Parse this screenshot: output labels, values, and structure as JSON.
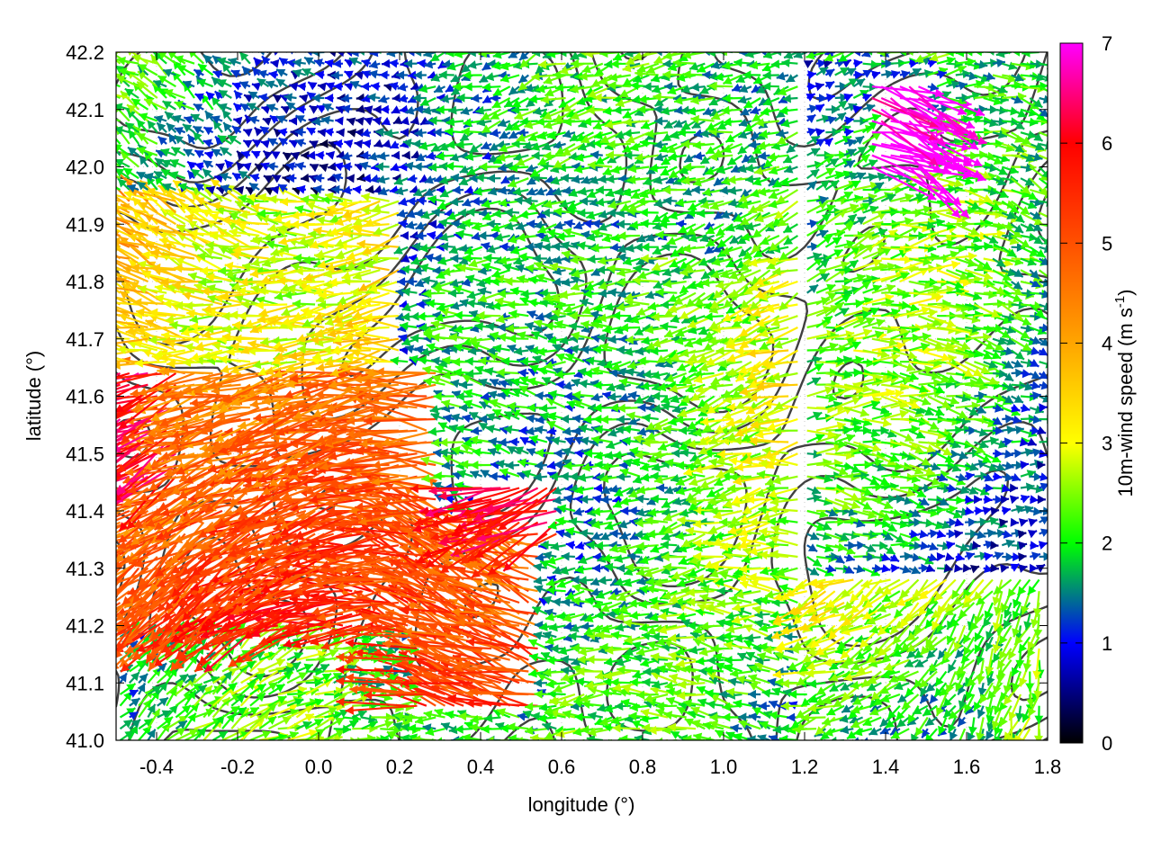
{
  "chart_data": {
    "type": "vector-field",
    "xlabel": "longitude (°)",
    "ylabel": "latitude (°)",
    "colorbar_label": "10m-wind speed (m s-1)",
    "colorbar_label_parts": {
      "main": "10m-wind speed (m s",
      "exponent": "-1",
      "close": ")"
    },
    "xlim": [
      -0.5,
      1.8
    ],
    "ylim": [
      41.0,
      42.2
    ],
    "x_ticks": [
      "-0.4",
      "-0.2",
      "0.0",
      "0.2",
      "0.4",
      "0.6",
      "0.8",
      "1.0",
      "1.2",
      "1.4",
      "1.6",
      "1.8"
    ],
    "x_tick_values": [
      -0.4,
      -0.2,
      0.0,
      0.2,
      0.4,
      0.6,
      0.8,
      1.0,
      1.2,
      1.4,
      1.6,
      1.8
    ],
    "y_ticks": [
      "41.0",
      "41.1",
      "41.2",
      "41.3",
      "41.4",
      "41.5",
      "41.6",
      "41.7",
      "41.8",
      "41.9",
      "42.0",
      "42.1",
      "42.2"
    ],
    "y_tick_values": [
      41.0,
      41.1,
      41.2,
      41.3,
      41.4,
      41.5,
      41.6,
      41.7,
      41.8,
      41.9,
      42.0,
      42.1,
      42.2
    ],
    "colorbar_range": [
      0,
      7
    ],
    "colorbar_ticks": [
      "0",
      "1",
      "2",
      "3",
      "4",
      "5",
      "6",
      "7"
    ],
    "colorbar_tick_values": [
      0,
      1,
      2,
      3,
      4,
      5,
      6,
      7
    ],
    "colormap": [
      {
        "speed": 0,
        "color": "#000000"
      },
      {
        "speed": 1,
        "color": "#0000ff"
      },
      {
        "speed": 1.5,
        "color": "#008080"
      },
      {
        "speed": 2,
        "color": "#00ff00"
      },
      {
        "speed": 3,
        "color": "#ffff00"
      },
      {
        "speed": 4,
        "color": "#ffa500"
      },
      {
        "speed": 5,
        "color": "#ff5000"
      },
      {
        "speed": 6,
        "color": "#ff0000"
      },
      {
        "speed": 7,
        "color": "#ff00ff"
      }
    ],
    "grid": "dotted",
    "contours": "terrain elevation isolines, dark grey, unlabeled",
    "wind_vectors_regions": [
      {
        "lon": [
          -0.5,
          0.3
        ],
        "lat": [
          41.2,
          41.65
        ],
        "speed": 5.0,
        "dir_deg": 185
      },
      {
        "lon": [
          -0.5,
          0.2
        ],
        "lat": [
          41.65,
          41.95
        ],
        "speed": 3.8,
        "dir_deg": 182
      },
      {
        "lon": [
          0.2,
          0.55
        ],
        "lat": [
          41.05,
          41.4
        ],
        "speed": 5.2,
        "dir_deg": 170
      },
      {
        "lon": [
          0.4,
          0.7
        ],
        "lat": [
          41.35,
          41.45
        ],
        "speed": 6.5,
        "dir_deg": 215
      },
      {
        "lon": [
          0.3,
          1.3
        ],
        "lat": [
          41.45,
          41.85
        ],
        "speed": 2.2,
        "dir_deg": 182
      },
      {
        "lon": [
          0.3,
          1.3
        ],
        "lat": [
          41.85,
          42.2
        ],
        "speed": 1.8,
        "dir_deg": 180
      },
      {
        "lon": [
          1.2,
          1.8
        ],
        "lat": [
          41.3,
          42.2
        ],
        "speed": 1.3,
        "dir_deg": 0
      },
      {
        "lon": [
          1.1,
          1.8
        ],
        "lat": [
          41.0,
          41.3
        ],
        "speed": 2.8,
        "dir_deg": 225
      },
      {
        "lon": [
          0.6,
          1.2
        ],
        "lat": [
          41.0,
          41.45
        ],
        "speed": 2.0,
        "dir_deg": 195
      },
      {
        "lon": [
          -0.5,
          0.2
        ],
        "lat": [
          41.0,
          41.2
        ],
        "speed": 1.6,
        "dir_deg": 10
      },
      {
        "lon": [
          1.35,
          1.5
        ],
        "lat": [
          42.0,
          42.15
        ],
        "speed": 6.8,
        "dir_deg": 325
      },
      {
        "lon": [
          -0.5,
          -0.35
        ],
        "lat": [
          41.45,
          41.65
        ],
        "speed": 6.5,
        "dir_deg": 200
      }
    ]
  }
}
